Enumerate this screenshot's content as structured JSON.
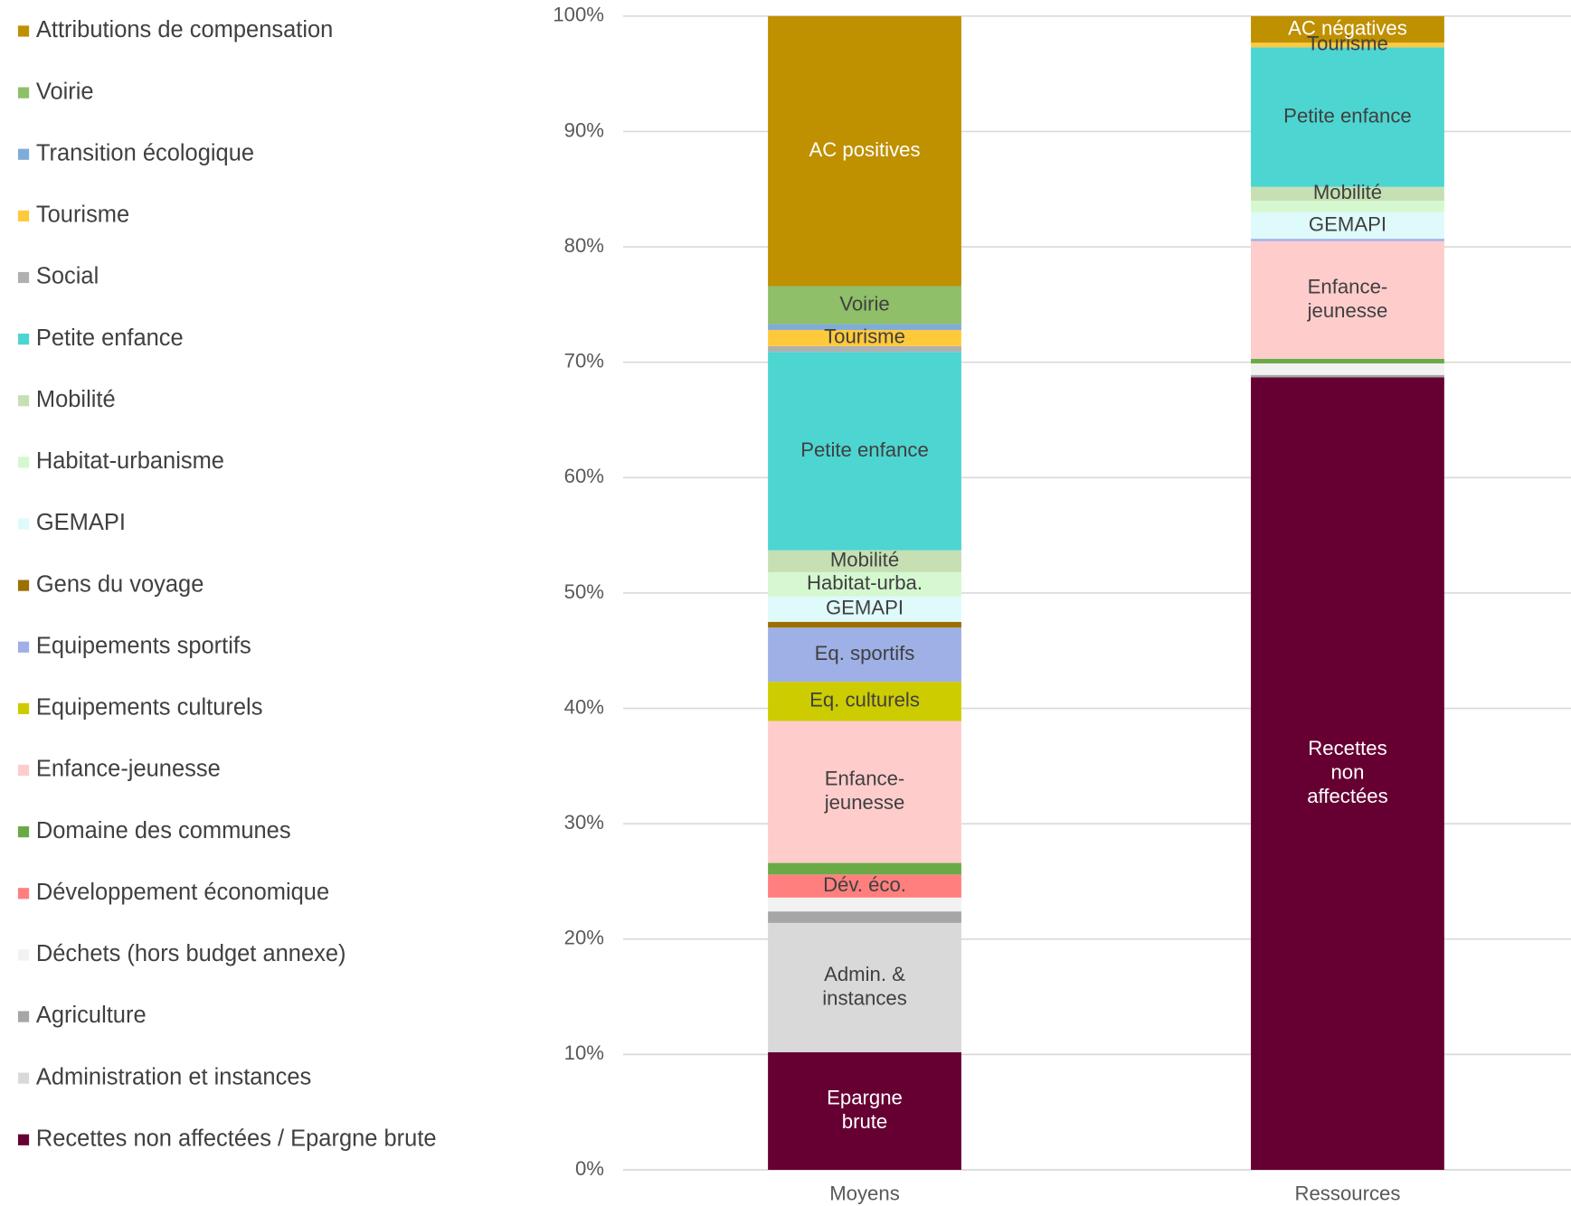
{
  "chart_data": {
    "type": "stacked_bar",
    "categories": [
      "Moyens",
      "Ressources"
    ],
    "ylim": [
      0,
      100
    ],
    "yticks": [
      {
        "value": 0,
        "label": "0%"
      },
      {
        "value": 10,
        "label": "10%"
      },
      {
        "value": 20,
        "label": "20%"
      },
      {
        "value": 30,
        "label": "30%"
      },
      {
        "value": 40,
        "label": "40%"
      },
      {
        "value": 50,
        "label": "50%"
      },
      {
        "value": 60,
        "label": "60%"
      },
      {
        "value": 70,
        "label": "70%"
      },
      {
        "value": 80,
        "label": "80%"
      },
      {
        "value": 90,
        "label": "90%"
      },
      {
        "value": 100,
        "label": "100%"
      }
    ],
    "grid": true,
    "legend": "left",
    "series": [
      {
        "name": "Recettes non affectées / Epargne brute",
        "color": "#660033",
        "label_color": "#ffffff",
        "values": [
          10.2,
          68.7
        ],
        "labels": [
          [
            "Epargne",
            "brute"
          ],
          [
            "Recettes",
            "non",
            "affectées"
          ]
        ]
      },
      {
        "name": "Administration et instances",
        "color": "#d9d9d9",
        "label_color": "#404040",
        "values": [
          11.2,
          0
        ],
        "labels": [
          [
            "Admin. &",
            "instances"
          ],
          null
        ]
      },
      {
        "name": "Agriculture",
        "color": "#a6a6a6",
        "label_color": "#404040",
        "values": [
          1.0,
          0.2
        ],
        "labels": [
          null,
          null
        ]
      },
      {
        "name": "Déchets (hors budget annexe)",
        "color": "#f2f2f2",
        "label_color": "#404040",
        "values": [
          1.2,
          1.0
        ],
        "labels": [
          null,
          null
        ]
      },
      {
        "name": "Développement économique",
        "color": "#ff7f7f",
        "label_color": "#404040",
        "values": [
          2.0,
          0
        ],
        "labels": [
          [
            "Dév. éco."
          ],
          null
        ]
      },
      {
        "name": "Domaine des communes",
        "color": "#6aaa46",
        "label_color": "#404040",
        "values": [
          1.0,
          0.4
        ],
        "labels": [
          null,
          null
        ]
      },
      {
        "name": "Enfance-jeunesse",
        "color": "#ffcccc",
        "label_color": "#404040",
        "values": [
          12.3,
          10.2
        ],
        "labels": [
          [
            "Enfance-",
            "jeunesse"
          ],
          [
            "Enfance-",
            "jeunesse"
          ]
        ]
      },
      {
        "name": "Equipements culturels",
        "color": "#cccc00",
        "label_color": "#404040",
        "values": [
          3.4,
          0
        ],
        "labels": [
          [
            "Eq. culturels"
          ],
          null
        ]
      },
      {
        "name": "Equipements sportifs",
        "color": "#9eb0e6",
        "label_color": "#404040",
        "values": [
          4.7,
          0.2
        ],
        "labels": [
          [
            "Eq. sportifs"
          ],
          null
        ]
      },
      {
        "name": "Gens du voyage",
        "color": "#9c6f00",
        "label_color": "#404040",
        "values": [
          0.5,
          0
        ],
        "labels": [
          null,
          null
        ]
      },
      {
        "name": "GEMAPI",
        "color": "#dffafa",
        "label_color": "#404040",
        "values": [
          2.2,
          2.3
        ],
        "labels": [
          [
            "GEMAPI"
          ],
          [
            "GEMAPI"
          ]
        ]
      },
      {
        "name": "Habitat-urbanisme",
        "color": "#d5f8d0",
        "label_color": "#404040",
        "values": [
          2.1,
          1.0
        ],
        "labels": [
          [
            "Habitat-urba."
          ],
          null
        ]
      },
      {
        "name": "Mobilité",
        "color": "#c6e0b4",
        "label_color": "#404040",
        "values": [
          1.9,
          1.2
        ],
        "labels": [
          [
            "Mobilité"
          ],
          [
            "Mobilité"
          ]
        ]
      },
      {
        "name": "Petite enfance",
        "color": "#4dd5d1",
        "label_color": "#404040",
        "values": [
          17.2,
          12.1
        ],
        "labels": [
          [
            "Petite enfance"
          ],
          [
            "Petite enfance"
          ]
        ]
      },
      {
        "name": "Social",
        "color": "#b0b0b0",
        "label_color": "#404040",
        "values": [
          0.5,
          0
        ],
        "labels": [
          null,
          null
        ]
      },
      {
        "name": "Tourisme",
        "color": "#ffc93c",
        "label_color": "#404040",
        "values": [
          1.4,
          0.4
        ],
        "labels": [
          [
            "Tourisme"
          ],
          [
            "Tourisme"
          ]
        ]
      },
      {
        "name": "Transition écologique",
        "color": "#7fabd9",
        "label_color": "#404040",
        "values": [
          0.5,
          0
        ],
        "labels": [
          null,
          null
        ]
      },
      {
        "name": "Voirie",
        "color": "#8fbf68",
        "label_color": "#404040",
        "values": [
          3.3,
          0
        ],
        "labels": [
          [
            "Voirie"
          ],
          null
        ]
      },
      {
        "name": "Attributions de compensation",
        "color": "#bf9000",
        "label_color": "#ffffff",
        "values": [
          23.4,
          2.3
        ],
        "labels": [
          [
            "AC positives"
          ],
          [
            "AC négatives"
          ]
        ]
      }
    ]
  }
}
